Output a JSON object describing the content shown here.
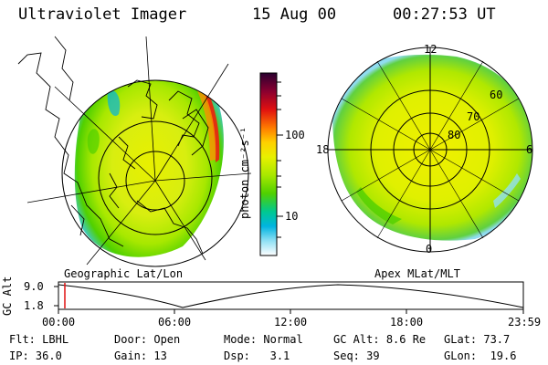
{
  "header": {
    "instrument": "Ultraviolet Imager",
    "date": "15 Aug 00",
    "time": "00:27:53 UT"
  },
  "left_panel": {
    "caption": "Geographic Lat/Lon"
  },
  "right_panel": {
    "caption": "Apex MLat/MLT",
    "lat_labels": [
      "60",
      "70",
      "80"
    ],
    "mlt_labels": {
      "top": "12",
      "left": "18",
      "right": "6",
      "bottom": "0"
    }
  },
  "colorbar": {
    "label": "photon cm⁻²s⁻¹",
    "ticks": [
      "100",
      "10"
    ],
    "colors": [
      "#2a0030",
      "#8a0030",
      "#e01010",
      "#ff7a00",
      "#ffd000",
      "#e8f000",
      "#a8e800",
      "#50d000",
      "#00c890",
      "#00b4e0",
      "#40d0f0",
      "#b8ecf8",
      "#ffffff"
    ]
  },
  "altitude_plot": {
    "axis_label": "GC Alt",
    "y_ticks": [
      "9.0",
      "1.8"
    ],
    "x_ticks": [
      "00:00",
      "06:00",
      "12:00",
      "18:00",
      "23:59"
    ]
  },
  "info": {
    "row1": [
      {
        "label": "Flt:",
        "value": "LBHL"
      },
      {
        "label": "Door:",
        "value": "Open"
      },
      {
        "label": "Mode:",
        "value": "Normal"
      },
      {
        "label": "GC Alt:",
        "value": "8.6 Re"
      },
      {
        "label": "GLat:",
        "value": "73.7"
      }
    ],
    "row2": [
      {
        "label": "IP:",
        "value": "36.0"
      },
      {
        "label": "Gain:",
        "value": "13"
      },
      {
        "label": "Dsp:",
        "value": "3.1"
      },
      {
        "label": "Seq:",
        "value": "39"
      },
      {
        "label": "GLon:",
        "value": "19.6"
      }
    ]
  }
}
